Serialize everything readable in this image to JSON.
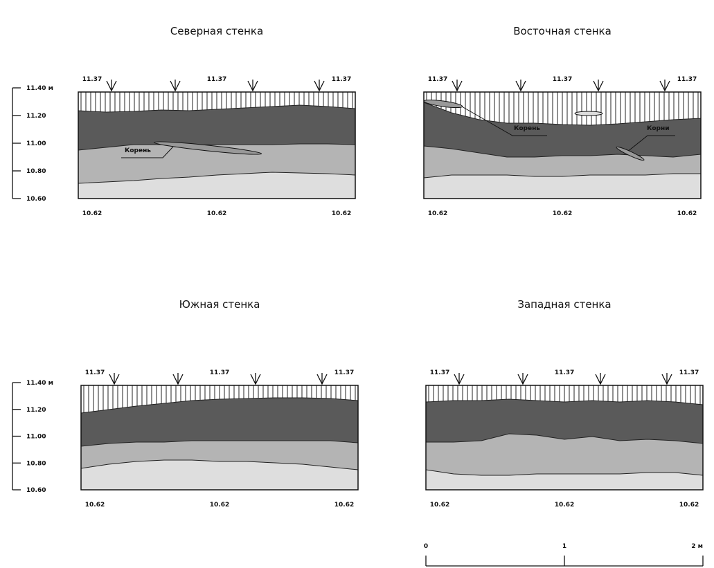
{
  "panels": [
    {
      "title": "Северная стенка",
      "top_labels": [
        "11.37",
        "11.37",
        "11.37"
      ],
      "bottom_labels": [
        "10.62",
        "10.62",
        "10.62"
      ],
      "annotations": [
        "Корень"
      ]
    },
    {
      "title": "Восточная стенка",
      "top_labels": [
        "11.37",
        "11.37",
        "11.37"
      ],
      "bottom_labels": [
        "10.62",
        "10.62",
        "10.62"
      ],
      "annotations": [
        "Корень",
        "Корни"
      ]
    },
    {
      "title": "Южная стенка",
      "top_labels": [
        "11.37",
        "11.37",
        "11.37"
      ],
      "bottom_labels": [
        "10.62",
        "10.62",
        "10.62"
      ],
      "annotations": []
    },
    {
      "title": "Западная стенка",
      "top_labels": [
        "11.37",
        "11.37",
        "11.37"
      ],
      "bottom_labels": [
        "10.62",
        "10.62",
        "10.62"
      ],
      "annotations": []
    }
  ],
  "scales": [
    {
      "labels": [
        "11.40 м",
        "11.20",
        "11.00",
        "10.80",
        "10.60"
      ]
    },
    {
      "labels": [
        "11.40 м",
        "11.20",
        "11.00",
        "10.80",
        "10.60"
      ]
    }
  ],
  "scale_bar": {
    "labels": [
      "0",
      "1",
      "2 м"
    ]
  }
}
